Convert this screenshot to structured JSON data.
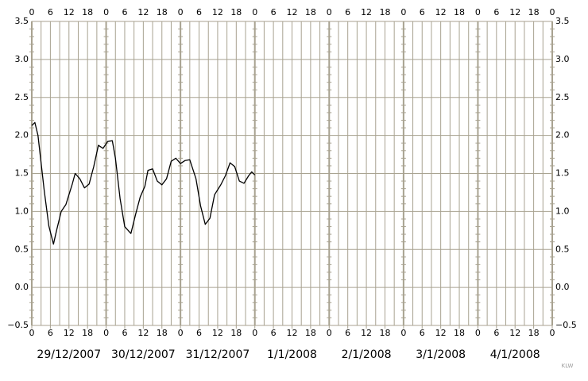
{
  "chart_data": {
    "type": "line",
    "x": [
      0,
      1,
      2,
      4,
      5.5,
      7,
      8,
      9.5,
      11,
      13,
      14,
      15.5,
      17,
      18.5,
      20,
      21.5,
      23,
      24.5,
      26,
      27,
      28.5,
      30,
      32,
      33.5,
      35,
      36.5,
      37.5,
      39,
      40.5,
      42,
      43.5,
      45,
      46.5,
      48,
      49.5,
      51,
      53,
      54.5,
      56,
      57.5,
      59,
      61,
      62.5,
      64,
      65.5,
      67,
      68.5,
      70,
      71,
      72
    ],
    "series": [
      {
        "color": "#000000",
        "values": [
          2.13,
          2.17,
          2.0,
          1.28,
          0.81,
          0.57,
          0.75,
          1.0,
          1.09,
          1.35,
          1.5,
          1.43,
          1.31,
          1.36,
          1.59,
          1.87,
          1.83,
          1.92,
          1.93,
          1.7,
          1.17,
          0.8,
          0.71,
          0.96,
          1.19,
          1.33,
          1.54,
          1.56,
          1.4,
          1.35,
          1.43,
          1.66,
          1.7,
          1.63,
          1.67,
          1.68,
          1.43,
          1.07,
          0.83,
          0.91,
          1.22,
          1.35,
          1.47,
          1.64,
          1.59,
          1.4,
          1.37,
          1.47,
          1.52,
          1.48
        ]
      }
    ],
    "xlim": [
      0,
      168
    ],
    "xticks": [
      0,
      6,
      12,
      18,
      {
        "value": 24,
        "label": "0"
      },
      {
        "value": 30,
        "label": "6"
      },
      {
        "value": 36,
        "label": "12"
      },
      {
        "value": 42,
        "label": "18"
      },
      {
        "value": 48,
        "label": "0"
      },
      {
        "value": 54,
        "label": "6"
      },
      {
        "value": 60,
        "label": "12"
      },
      {
        "value": 66,
        "label": "18"
      },
      {
        "value": 72,
        "label": "0"
      },
      {
        "value": 78,
        "label": "6"
      },
      {
        "value": 84,
        "label": "12"
      },
      {
        "value": 90,
        "label": "18"
      },
      {
        "value": 96,
        "label": "0"
      },
      {
        "value": 102,
        "label": "6"
      },
      {
        "value": 108,
        "label": "12"
      },
      {
        "value": 114,
        "label": "18"
      },
      {
        "value": 120,
        "label": "0"
      },
      {
        "value": 126,
        "label": "6"
      },
      {
        "value": 132,
        "label": "12"
      },
      {
        "value": 138,
        "label": "18"
      },
      {
        "value": 144,
        "label": "0"
      },
      {
        "value": 150,
        "label": "6"
      },
      {
        "value": 156,
        "label": "12"
      },
      {
        "value": 162,
        "label": "18"
      },
      {
        "value": 168,
        "label": "0"
      }
    ],
    "ylim": [
      -0.5,
      3.5
    ],
    "yticks": [
      {
        "value": -0.5,
        "label": "−0.5"
      },
      {
        "value": 0,
        "label": "0.0"
      },
      0.5,
      {
        "value": 1,
        "label": "1.0"
      },
      1.5,
      {
        "value": 2,
        "label": "2.0"
      },
      2.5,
      {
        "value": 3,
        "label": "3.0"
      },
      3.5
    ],
    "days": [
      "29/12/2007",
      "30/12/2007",
      "31/12/2007",
      "1/1/2008",
      "2/1/2008",
      "3/1/2008",
      "4/1/2008"
    ],
    "day_color": "#1010c8",
    "grid": true,
    "signature": "KLW"
  }
}
